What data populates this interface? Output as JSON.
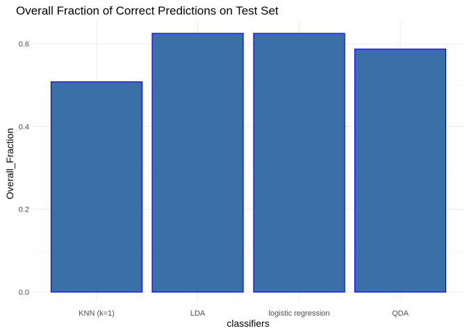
{
  "chart_data": {
    "type": "bar",
    "title": "Overall Fraction of Correct Predictions on Test Set",
    "xlabel": "classifiers",
    "ylabel": "Overall_Fraction",
    "categories": [
      "KNN (k=1)",
      "LDA",
      "logistic regression",
      "QDA"
    ],
    "values": [
      0.508,
      0.625,
      0.625,
      0.587
    ],
    "ylim": [
      0,
      0.655
    ],
    "yticks": [
      0.0,
      0.2,
      0.4,
      0.6
    ],
    "ytick_labels": [
      "0.0",
      "0.2",
      "0.4",
      "0.6"
    ],
    "grid": true,
    "legend": "none",
    "colors": {
      "bar_fill": "#3a6fa7",
      "bar_stroke": "#0000ff",
      "grid": "#ebebeb"
    }
  }
}
